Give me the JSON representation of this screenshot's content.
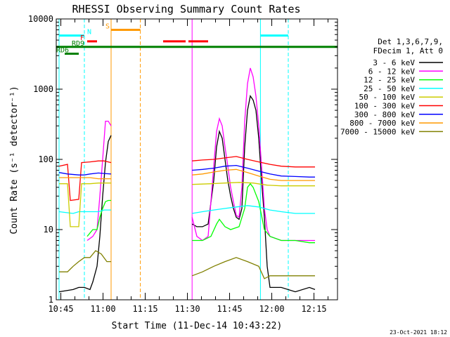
{
  "chart_data": {
    "type": "line",
    "title": "RHESSI Observing Summary Count Rates",
    "xlabel": "Start Time (11-Dec-14 10:43:22)",
    "ylabel": "Count Rate (s⁻¹ detector⁻¹)",
    "yscale": "log",
    "ylim": [
      1,
      10000
    ],
    "xlim_minutes": [
      0,
      100
    ],
    "x_tick_labels": [
      "10:45",
      "11:00",
      "11:15",
      "11:30",
      "11:45",
      "12:00",
      "12:15"
    ],
    "x_tick_minutes": [
      1.63,
      16.63,
      31.63,
      46.63,
      61.63,
      76.63,
      91.63
    ],
    "y_ticks": [
      1,
      10,
      100,
      1000,
      10000
    ],
    "y_tick_labels": [
      "1",
      "10",
      "100",
      "1000",
      "10000"
    ],
    "grid": false,
    "legend_header": [
      "Det 1,3,6,7,9,",
      "FDecim 1, Att 0"
    ],
    "legend_position": "right",
    "datagaps": [
      [
        19.5,
        48.3
      ]
    ],
    "series": [
      {
        "name": "3 - 6 keV",
        "color": "#000000",
        "points": [
          [
            1,
            1.3
          ],
          [
            6,
            1.4
          ],
          [
            8,
            1.5
          ],
          [
            10,
            1.5
          ],
          [
            12,
            1.4
          ],
          [
            13,
            1.8
          ],
          [
            14.5,
            3
          ],
          [
            15.5,
            8
          ],
          [
            16.5,
            30
          ],
          [
            17.5,
            90
          ],
          [
            18.5,
            180
          ],
          [
            19.5,
            220
          ],
          [
            48.3,
            12
          ],
          [
            50,
            11
          ],
          [
            52,
            11
          ],
          [
            54,
            12
          ],
          [
            56,
            50
          ],
          [
            57,
            150
          ],
          [
            58,
            250
          ],
          [
            59,
            200
          ],
          [
            60,
            100
          ],
          [
            61,
            50
          ],
          [
            62,
            30
          ],
          [
            63,
            20
          ],
          [
            64,
            15
          ],
          [
            65,
            14
          ],
          [
            66,
            20
          ],
          [
            67,
            150
          ],
          [
            68,
            500
          ],
          [
            69,
            800
          ],
          [
            70,
            700
          ],
          [
            71,
            500
          ],
          [
            72,
            200
          ],
          [
            73,
            50
          ],
          [
            74,
            15
          ],
          [
            75,
            3
          ],
          [
            76,
            1.5
          ],
          [
            80,
            1.5
          ],
          [
            85,
            1.3
          ],
          [
            90,
            1.5
          ],
          [
            92,
            1.4
          ]
        ]
      },
      {
        "name": "6 - 12 keV",
        "color": "#ff00ff",
        "points": [
          [
            11,
            7
          ],
          [
            13,
            8
          ],
          [
            14.5,
            10
          ],
          [
            15.5,
            30
          ],
          [
            16.5,
            100
          ],
          [
            17.5,
            350
          ],
          [
            18.5,
            350
          ],
          [
            19.5,
            300
          ],
          [
            48.3,
            15
          ],
          [
            50,
            8
          ],
          [
            52,
            7
          ],
          [
            54,
            8
          ],
          [
            56,
            80
          ],
          [
            57,
            250
          ],
          [
            58,
            380
          ],
          [
            59,
            300
          ],
          [
            60,
            150
          ],
          [
            61,
            80
          ],
          [
            62,
            40
          ],
          [
            63,
            25
          ],
          [
            64,
            16
          ],
          [
            65,
            15
          ],
          [
            66,
            40
          ],
          [
            67,
            350
          ],
          [
            68,
            1200
          ],
          [
            69,
            2000
          ],
          [
            70,
            1500
          ],
          [
            71,
            800
          ],
          [
            72,
            300
          ],
          [
            73,
            80
          ],
          [
            74,
            20
          ],
          [
            75,
            10
          ],
          [
            76,
            8
          ],
          [
            80,
            7
          ],
          [
            85,
            7
          ],
          [
            90,
            7
          ],
          [
            92,
            7
          ]
        ]
      },
      {
        "name": "12 - 25 keV",
        "color": "#00ff00",
        "points": [
          [
            11,
            8
          ],
          [
            13,
            10
          ],
          [
            14.5,
            10
          ],
          [
            15.5,
            15
          ],
          [
            16.5,
            20
          ],
          [
            17.5,
            25
          ],
          [
            18.5,
            26
          ],
          [
            19.5,
            26
          ],
          [
            48.3,
            7
          ],
          [
            52,
            7
          ],
          [
            55,
            8
          ],
          [
            57,
            12
          ],
          [
            58,
            14
          ],
          [
            60,
            11
          ],
          [
            62,
            10
          ],
          [
            65,
            11
          ],
          [
            67,
            20
          ],
          [
            68,
            40
          ],
          [
            69,
            45
          ],
          [
            70,
            40
          ],
          [
            72,
            25
          ],
          [
            74,
            10
          ],
          [
            76,
            8
          ],
          [
            80,
            7
          ],
          [
            85,
            7
          ],
          [
            90,
            6.5
          ],
          [
            92,
            6.5
          ]
        ]
      },
      {
        "name": "25 - 50 keV",
        "color": "#00ffff",
        "points": [
          [
            1,
            18
          ],
          [
            6,
            17
          ],
          [
            8,
            18
          ],
          [
            10,
            18
          ],
          [
            12,
            18
          ],
          [
            15,
            18
          ],
          [
            17,
            19
          ],
          [
            19.5,
            19
          ],
          [
            48.3,
            17
          ],
          [
            52,
            18
          ],
          [
            56,
            19
          ],
          [
            60,
            20
          ],
          [
            64,
            21
          ],
          [
            68,
            22
          ],
          [
            72,
            21
          ],
          [
            76,
            19
          ],
          [
            80,
            18
          ],
          [
            85,
            17
          ],
          [
            90,
            17
          ],
          [
            92,
            17
          ]
        ]
      },
      {
        "name": "50 - 100 keV",
        "color": "#cccc00",
        "points": [
          [
            1,
            45
          ],
          [
            4,
            45
          ],
          [
            5,
            11
          ],
          [
            8,
            11
          ],
          [
            9,
            45
          ],
          [
            12,
            45
          ],
          [
            15,
            46
          ],
          [
            19.5,
            46
          ],
          [
            48.3,
            44
          ],
          [
            55,
            45
          ],
          [
            60,
            46
          ],
          [
            65,
            47
          ],
          [
            70,
            46
          ],
          [
            75,
            43
          ],
          [
            80,
            42
          ],
          [
            85,
            42
          ],
          [
            90,
            42
          ],
          [
            92,
            42
          ]
        ]
      },
      {
        "name": "100 - 300 keV",
        "color": "#ff0000",
        "points": [
          [
            1,
            80
          ],
          [
            4,
            85
          ],
          [
            5,
            26
          ],
          [
            8,
            27
          ],
          [
            9,
            90
          ],
          [
            12,
            92
          ],
          [
            15,
            95
          ],
          [
            17,
            95
          ],
          [
            19.5,
            90
          ],
          [
            48.3,
            95
          ],
          [
            52,
            98
          ],
          [
            56,
            100
          ],
          [
            60,
            105
          ],
          [
            64,
            110
          ],
          [
            68,
            100
          ],
          [
            72,
            92
          ],
          [
            76,
            85
          ],
          [
            80,
            80
          ],
          [
            85,
            78
          ],
          [
            90,
            78
          ],
          [
            92,
            78
          ]
        ]
      },
      {
        "name": "300 - 800 keV",
        "color": "#0000ff",
        "points": [
          [
            1,
            65
          ],
          [
            4,
            62
          ],
          [
            8,
            60
          ],
          [
            10,
            60
          ],
          [
            12,
            62
          ],
          [
            15,
            64
          ],
          [
            17,
            63
          ],
          [
            19.5,
            62
          ],
          [
            48.3,
            70
          ],
          [
            52,
            72
          ],
          [
            56,
            75
          ],
          [
            60,
            80
          ],
          [
            64,
            82
          ],
          [
            68,
            75
          ],
          [
            72,
            68
          ],
          [
            76,
            62
          ],
          [
            80,
            58
          ],
          [
            85,
            57
          ],
          [
            90,
            56
          ],
          [
            92,
            56
          ]
        ]
      },
      {
        "name": "800 - 7000 keV",
        "color": "#ff9900",
        "points": [
          [
            1,
            55
          ],
          [
            4,
            55
          ],
          [
            8,
            55
          ],
          [
            12,
            55
          ],
          [
            15,
            53
          ],
          [
            19.5,
            53
          ],
          [
            48.3,
            60
          ],
          [
            52,
            62
          ],
          [
            56,
            66
          ],
          [
            60,
            70
          ],
          [
            64,
            72
          ],
          [
            68,
            65
          ],
          [
            72,
            58
          ],
          [
            76,
            52
          ],
          [
            80,
            50
          ],
          [
            85,
            50
          ],
          [
            90,
            50
          ],
          [
            92,
            50
          ]
        ]
      },
      {
        "name": "7000 - 15000 keV",
        "color": "#808000",
        "points": [
          [
            1,
            2.5
          ],
          [
            4,
            2.5
          ],
          [
            6,
            3
          ],
          [
            8,
            3.5
          ],
          [
            10,
            4
          ],
          [
            12,
            4
          ],
          [
            14,
            5
          ],
          [
            16,
            4.5
          ],
          [
            18,
            3.5
          ],
          [
            19.5,
            3.5
          ],
          [
            48.3,
            2.2
          ],
          [
            52,
            2.5
          ],
          [
            56,
            3
          ],
          [
            60,
            3.5
          ],
          [
            64,
            4
          ],
          [
            68,
            3.5
          ],
          [
            72,
            3
          ],
          [
            74,
            2
          ],
          [
            76,
            2.2
          ],
          [
            80,
            2.2
          ],
          [
            85,
            2.2
          ],
          [
            90,
            2.2
          ],
          [
            92,
            2.2
          ]
        ]
      }
    ],
    "vlines": [
      {
        "x": 1.0,
        "color": "#00ffff",
        "style": "solid"
      },
      {
        "x": 10.0,
        "color": "#00ffff",
        "style": "dashed"
      },
      {
        "x": 19.5,
        "color": "#ff9900",
        "style": "solid"
      },
      {
        "x": 29.9,
        "color": "#ff9900",
        "style": "dashed"
      },
      {
        "x": 48.3,
        "color": "#ff00ff",
        "style": "solid"
      },
      {
        "x": 72.6,
        "color": "#00ffff",
        "style": "solid"
      },
      {
        "x": 82.5,
        "color": "#00ffff",
        "style": "dashed"
      }
    ],
    "flag_bars": [
      {
        "label": "",
        "color": "#00ffff",
        "y": 5800,
        "x_ranges": [
          [
            1.0,
            10.0
          ],
          [
            72.6,
            82.5
          ]
        ]
      },
      {
        "label": "N",
        "color": "#00ffff",
        "y": 5800,
        "label_x": 11.0
      },
      {
        "label": "S",
        "color": "#ff9900",
        "y": 7000,
        "x_ranges": [
          [
            19.5,
            29.9
          ]
        ],
        "label_x": 17.5
      },
      {
        "label": "F",
        "color": "#ff0000",
        "y": 4800,
        "x_ranges": [
          [
            11.0,
            14.5
          ],
          [
            38.0,
            46.0
          ],
          [
            47.0,
            54.0
          ]
        ],
        "label_x": 8.5
      },
      {
        "label": "RD9",
        "color": "#008000",
        "y": 4000,
        "x_ranges": [
          [
            0,
            100
          ]
        ],
        "label_x": 5.5
      },
      {
        "label": "RD6",
        "color": "#008000",
        "y": 3200,
        "x_ranges": [
          [
            3.0,
            8.0
          ]
        ],
        "label_x": 0
      }
    ],
    "timestamp": "23-Oct-2021 18:12"
  }
}
